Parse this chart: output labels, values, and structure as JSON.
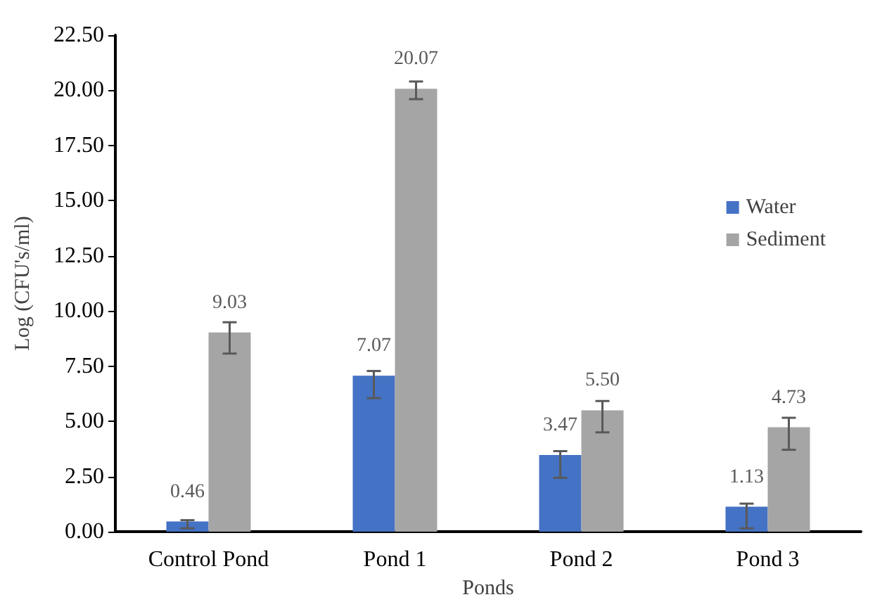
{
  "chart_data": {
    "type": "bar",
    "xlabel": "Ponds",
    "ylabel": "Log (CFU's/ml)",
    "categories": [
      "Control Pond",
      "Pond 1",
      "Pond 2",
      "Pond 3"
    ],
    "series": [
      {
        "name": "Water",
        "color": "#4472c4",
        "values": [
          0.46,
          7.07,
          3.47,
          1.13
        ],
        "value_labels": [
          "0.46",
          "7.07",
          "3.47",
          "1.13"
        ],
        "errors": [
          [
            0.15,
            0.52
          ],
          [
            6.05,
            7.28
          ],
          [
            2.44,
            3.65
          ],
          [
            0.15,
            1.27
          ]
        ]
      },
      {
        "name": "Sediment",
        "color": "#a5a5a5",
        "values": [
          9.03,
          20.07,
          5.5,
          4.73
        ],
        "value_labels": [
          "9.03",
          "20.07",
          "5.50",
          "4.73"
        ],
        "errors": [
          [
            8.07,
            9.49
          ],
          [
            19.6,
            20.4
          ],
          [
            4.5,
            5.92
          ],
          [
            3.71,
            5.16
          ]
        ]
      }
    ],
    "ylim": [
      0,
      22.5
    ],
    "yticks": [
      {
        "value": 0,
        "label": "0.00"
      },
      {
        "value": 2.5,
        "label": "2.50"
      },
      {
        "value": 5,
        "label": "5.00"
      },
      {
        "value": 7.5,
        "label": "7.50"
      },
      {
        "value": 10,
        "label": "10.00"
      },
      {
        "value": 12.5,
        "label": "12.50"
      },
      {
        "value": 15,
        "label": "15.00"
      },
      {
        "value": 17.5,
        "label": "17.50"
      },
      {
        "value": 20,
        "label": "20.00"
      },
      {
        "value": 22.5,
        "label": "22.50"
      }
    ],
    "grid": false,
    "legend": "top right"
  }
}
